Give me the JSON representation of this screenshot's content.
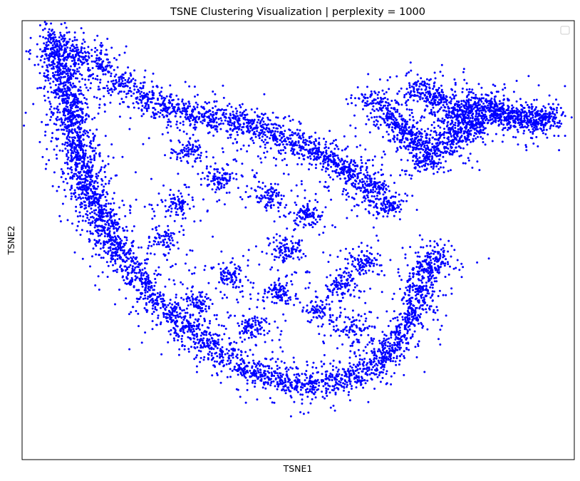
{
  "chart_data": {
    "type": "scatter",
    "title": "TSNE Clustering Visualization | perplexity = 1000",
    "xlabel": "TSNE1",
    "ylabel": "TSNE2",
    "xticks": [],
    "yticks": [],
    "grid": false,
    "legend": {
      "placement": "upper-right",
      "entries": []
    },
    "marker_color": "#0000ff",
    "background_color": "#ffffff",
    "axes_color": "#000000",
    "xlim": [
      0,
      100
    ],
    "ylim": [
      0,
      100
    ],
    "series": [
      {
        "color": "#0000ff",
        "approx_point_count": 9000,
        "skeleton_points": [
          [
            6,
            95
          ],
          [
            6.5,
            92
          ],
          [
            7,
            89
          ],
          [
            7.5,
            86
          ],
          [
            8.5,
            83
          ],
          [
            8.7,
            80
          ],
          [
            9,
            77
          ],
          [
            9.5,
            74
          ],
          [
            10,
            71
          ],
          [
            10.5,
            68
          ],
          [
            11,
            65
          ],
          [
            12,
            62
          ],
          [
            13,
            59
          ],
          [
            14,
            56
          ],
          [
            15,
            53
          ],
          [
            16.5,
            50
          ],
          [
            18,
            47
          ],
          [
            20,
            43
          ],
          [
            22,
            40
          ],
          [
            24,
            36
          ],
          [
            27,
            33
          ],
          [
            30,
            30
          ],
          [
            33,
            27
          ],
          [
            36,
            24
          ],
          [
            40,
            21
          ],
          [
            44,
            19
          ],
          [
            48,
            18
          ],
          [
            52,
            17
          ],
          [
            56,
            18
          ],
          [
            60,
            19
          ],
          [
            63,
            21
          ],
          [
            66,
            24
          ],
          [
            68,
            27
          ],
          [
            70,
            31
          ],
          [
            71,
            35
          ],
          [
            72,
            39
          ],
          [
            73,
            43
          ],
          [
            75,
            46
          ],
          [
            10,
            92
          ],
          [
            14,
            90
          ],
          [
            18,
            86
          ],
          [
            22,
            82
          ],
          [
            26,
            80
          ],
          [
            30,
            79
          ],
          [
            34,
            78
          ],
          [
            38,
            77
          ],
          [
            42,
            76
          ],
          [
            46,
            74
          ],
          [
            50,
            72
          ],
          [
            53,
            70
          ],
          [
            56,
            68
          ],
          [
            59,
            66
          ],
          [
            62,
            63
          ],
          [
            64,
            61
          ],
          [
            66,
            58
          ],
          [
            64,
            82
          ],
          [
            66,
            79
          ],
          [
            68,
            76
          ],
          [
            70,
            74
          ],
          [
            72,
            72
          ],
          [
            72,
            84
          ],
          [
            75,
            82
          ],
          [
            78,
            80
          ],
          [
            80,
            78
          ],
          [
            82,
            81
          ],
          [
            84,
            80
          ],
          [
            86,
            79
          ],
          [
            88,
            78
          ],
          [
            90,
            78
          ],
          [
            93,
            77
          ],
          [
            95,
            78
          ],
          [
            82,
            76
          ],
          [
            79,
            74
          ],
          [
            76,
            71
          ],
          [
            73,
            68
          ],
          [
            30,
            70
          ],
          [
            36,
            64
          ],
          [
            28,
            58
          ],
          [
            45,
            60
          ],
          [
            52,
            56
          ],
          [
            48,
            48
          ],
          [
            38,
            42
          ],
          [
            32,
            36
          ],
          [
            58,
            40
          ],
          [
            62,
            45
          ],
          [
            60,
            30
          ],
          [
            42,
            30
          ],
          [
            26,
            50
          ],
          [
            54,
            34
          ],
          [
            46,
            38
          ]
        ]
      }
    ]
  }
}
